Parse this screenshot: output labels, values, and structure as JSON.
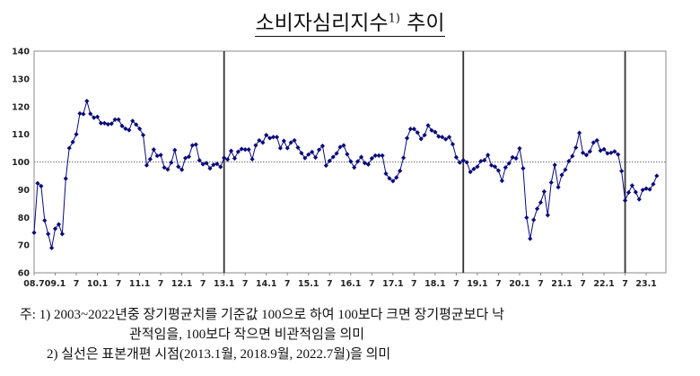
{
  "title": {
    "text": "소비자심리지수",
    "sup": "1)",
    "suffix": " 추이"
  },
  "chart_data": {
    "type": "line",
    "title": "소비자심리지수1) 추이",
    "xlabel": "",
    "ylabel": "",
    "x_start": "2008.7",
    "x_end": "2023.4",
    "frequency": "monthly",
    "ylim": [
      60,
      140
    ],
    "yticks": [
      60,
      70,
      80,
      90,
      100,
      110,
      120,
      130,
      140
    ],
    "xtick_labels": [
      "08.7",
      "09.1",
      "7",
      "10.1",
      "7",
      "11.1",
      "7",
      "12.1",
      "7",
      "13.1",
      "7",
      "14.1",
      "7",
      "15.1",
      "7",
      "16.1",
      "7",
      "17.1",
      "7",
      "18.1",
      "7",
      "19.1",
      "7",
      "20.1",
      "7",
      "21.1",
      "7",
      "22.1",
      "7",
      "23.1"
    ],
    "reference_line": 100,
    "sample_revision_lines": [
      "2013.1",
      "2018.9",
      "2022.7"
    ],
    "grid": false,
    "series_color": "#0a0a7a",
    "values": [
      74.5,
      92.3,
      91.3,
      78.9,
      74.0,
      69.0,
      75.9,
      77.5,
      74.0,
      94.0,
      105.0,
      107.2,
      110.0,
      117.5,
      117.3,
      122.0,
      117.4,
      116.0,
      116.3,
      114.0,
      114.0,
      113.6,
      113.8,
      115.3,
      115.3,
      113.0,
      112.0,
      111.5,
      114.8,
      113.5,
      112.0,
      109.7,
      98.8,
      101.0,
      104.5,
      102.2,
      102.5,
      98.0,
      97.3,
      99.8,
      104.3,
      98.3,
      97.2,
      101.4,
      101.9,
      106.0,
      106.3,
      100.6,
      99.2,
      99.6,
      97.7,
      99.0,
      99.3,
      98.2,
      101.5,
      100.9,
      104.0,
      101.3,
      103.7,
      104.7,
      104.5,
      104.5,
      101.0,
      106.0,
      107.8,
      107.0,
      109.7,
      108.6,
      109.0,
      109.0,
      105.0,
      107.6,
      105.0,
      107.0,
      107.8,
      105.2,
      103.2,
      101.4,
      102.7,
      103.6,
      101.6,
      104.4,
      105.8,
      98.7,
      100.4,
      101.8,
      103.1,
      105.4,
      106.0,
      102.8,
      100.2,
      98.0,
      100.2,
      101.8,
      99.6,
      99.1,
      101.3,
      102.3,
      102.3,
      102.3,
      95.8,
      94.1,
      93.1,
      94.4,
      96.8,
      101.5,
      108.6,
      111.9,
      111.9,
      110.6,
      108.3,
      109.7,
      113.2,
      111.4,
      110.8,
      109.2,
      109.0,
      108.2,
      109.0,
      106.4,
      101.7,
      99.8,
      100.6,
      99.9,
      96.4,
      97.5,
      98.3,
      100.3,
      100.6,
      102.5,
      98.8,
      98.3,
      96.9,
      93.2,
      98.0,
      99.5,
      101.7,
      101.3,
      104.9,
      97.7,
      79.9,
      72.3,
      79.1,
      83.1,
      85.4,
      89.3,
      80.8,
      92.6,
      98.9,
      90.9,
      95.3,
      97.2,
      100.3,
      102.1,
      105.2,
      110.5,
      103.3,
      102.5,
      103.8,
      107.0,
      107.8,
      104.1,
      104.6,
      103.1,
      103.3,
      103.8,
      102.7,
      96.7,
      86.1,
      89.0,
      91.5,
      89.1,
      86.5,
      89.9,
      90.4,
      90.1,
      92.0,
      95.0
    ]
  },
  "notes": {
    "line1": "주: 1) 2003~2022년중 장기평균치를 기준값 100으로 하여 100보다 크면 장기평균보다 낙",
    "line2": "관적임을, 100보다 작으면 비관적임을 의미",
    "line3": "2) 실선은 표본개편 시점(2013.1월, 2018.9월, 2022.7월)을 의미"
  }
}
